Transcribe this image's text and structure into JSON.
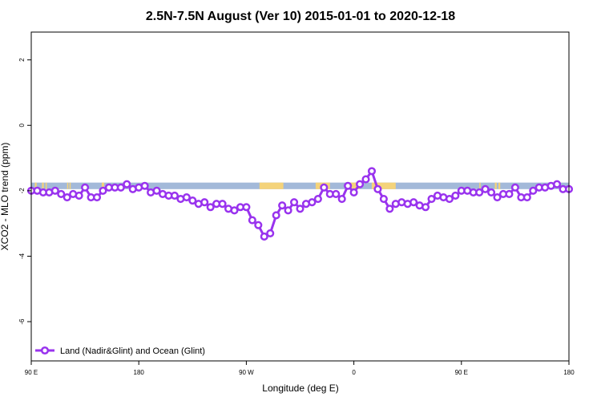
{
  "chart_data": {
    "type": "line",
    "title": "2.5N-7.5N August (Ver 10)   2015-01-01 to 2020-12-18",
    "xlabel": "Longitude (deg E)",
    "ylabel": "XCO2 - MLO trend (ppm)",
    "x_ticks": [
      {
        "value": 90,
        "label": "90 E"
      },
      {
        "value": 180,
        "label": "180"
      },
      {
        "value": 270,
        "label": "90 W"
      },
      {
        "value": 360,
        "label": "0"
      },
      {
        "value": 450,
        "label": "90 E"
      },
      {
        "value": 540,
        "label": "180"
      }
    ],
    "y_ticks": [
      {
        "value": 2,
        "label": "2"
      },
      {
        "value": 0,
        "label": "0"
      },
      {
        "value": -2,
        "label": "-2"
      },
      {
        "value": -4,
        "label": "-4"
      },
      {
        "value": -6,
        "label": "-6"
      }
    ],
    "xlim": [
      90,
      540
    ],
    "ylim": [
      -7.2,
      2.85
    ],
    "land_mask_band": {
      "y_range": [
        -1.95,
        -1.75
      ],
      "ocean_color": "#a3b9d9",
      "land_color": "#f4d37a",
      "land_segments": [
        [
          93,
          94.5
        ],
        [
          99,
          100.5
        ],
        [
          102,
          103
        ],
        [
          120,
          121
        ],
        [
          122,
          123
        ],
        [
          149,
          151
        ],
        [
          281,
          301
        ],
        [
          328,
          340
        ],
        [
          356,
          365
        ],
        [
          375,
          395
        ],
        [
          465,
          466
        ],
        [
          478,
          479.5
        ],
        [
          481,
          482.5
        ]
      ]
    },
    "series": [
      {
        "name": "Land (Nadir&Glint) and Ocean (Glint)",
        "color": "#9933ee",
        "x": [
          90,
          95,
          100,
          105,
          110,
          115,
          120,
          125,
          130,
          135,
          140,
          145,
          150,
          155,
          160,
          165,
          170,
          175,
          180,
          185,
          190,
          195,
          200,
          205,
          210,
          215,
          220,
          225,
          230,
          235,
          240,
          245,
          250,
          255,
          260,
          265,
          270,
          275,
          280,
          285,
          290,
          295,
          300,
          305,
          310,
          315,
          320,
          325,
          330,
          335,
          340,
          345,
          350,
          355,
          360,
          365,
          370,
          375,
          380,
          385,
          390,
          395,
          400,
          405,
          410,
          415,
          420,
          425,
          430,
          435,
          440,
          445,
          450,
          455,
          460,
          465,
          470,
          475,
          480,
          485,
          490,
          495,
          500,
          505,
          510,
          515,
          520,
          525,
          530,
          535,
          540
        ],
        "y": [
          -2.0,
          -2.0,
          -2.05,
          -2.05,
          -2.0,
          -2.1,
          -2.2,
          -2.1,
          -2.15,
          -1.9,
          -2.2,
          -2.2,
          -2.0,
          -1.9,
          -1.9,
          -1.9,
          -1.8,
          -1.95,
          -1.9,
          -1.85,
          -2.05,
          -2.0,
          -2.1,
          -2.15,
          -2.15,
          -2.25,
          -2.2,
          -2.3,
          -2.4,
          -2.35,
          -2.5,
          -2.4,
          -2.4,
          -2.55,
          -2.6,
          -2.5,
          -2.5,
          -2.9,
          -3.05,
          -3.4,
          -3.3,
          -2.75,
          -2.45,
          -2.6,
          -2.35,
          -2.55,
          -2.4,
          -2.35,
          -2.25,
          -1.9,
          -2.1,
          -2.1,
          -2.25,
          -1.85,
          -2.05,
          -1.8,
          -1.65,
          -1.4,
          -1.95,
          -2.25,
          -2.55,
          -2.4,
          -2.35,
          -2.4,
          -2.35,
          -2.45,
          -2.5,
          -2.25,
          -2.15,
          -2.2,
          -2.25,
          -2.15,
          -2.0,
          -2.0,
          -2.05,
          -2.05,
          -1.95,
          -2.05,
          -2.2,
          -2.1,
          -2.1,
          -1.9,
          -2.2,
          -2.2,
          -2.0,
          -1.9,
          -1.9,
          -1.85,
          -1.8,
          -1.95,
          -1.95
        ]
      }
    ],
    "legend": {
      "position": "bottom-left",
      "entries": [
        "Land (Nadir&Glint) and Ocean (Glint)"
      ]
    },
    "grid": false
  }
}
